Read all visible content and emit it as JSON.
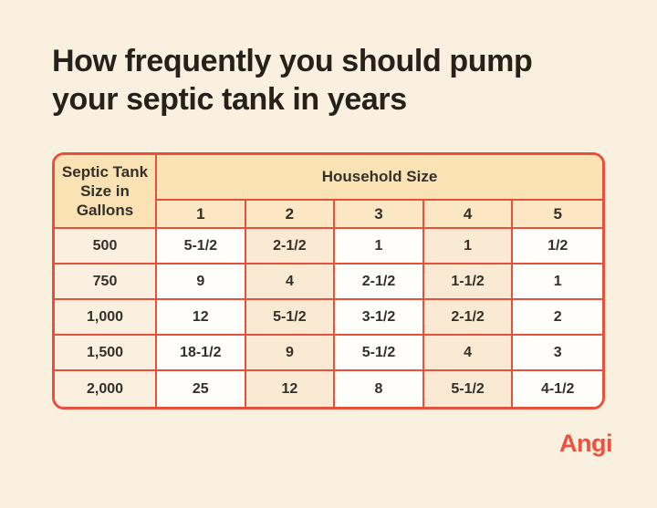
{
  "page": {
    "background_color": "#faf0df",
    "accent_red": "#e9503c",
    "header_peach": "#fae2b5",
    "subheader_peach": "#fbe7c3",
    "row_label_peach": "#fbefe0",
    "alt_column_peach": "#fae9d3",
    "title_color": "#26221b"
  },
  "header": {
    "title_line1": "How frequently you should pump",
    "title_line2": "your septic tank in years"
  },
  "footer": {
    "brand": "Angi",
    "brand_color": "#f0503c"
  },
  "chart_data": {
    "type": "table",
    "title": "How frequently you should pump your septic tank in years",
    "corner_header": "Septic Tank Size in Gallons",
    "corner_header_lines": [
      "Septic Tank",
      "Size in",
      "Gallons"
    ],
    "column_group_label": "Household Size",
    "household_sizes": [
      "1",
      "2",
      "3",
      "4",
      "5"
    ],
    "unit": "years",
    "rows": [
      {
        "tank_size_gallons": "500",
        "years_by_household_size": [
          "5-1/2",
          "2-1/2",
          "1",
          "1",
          "1/2"
        ]
      },
      {
        "tank_size_gallons": "750",
        "years_by_household_size": [
          "9",
          "4",
          "2-1/2",
          "1-1/2",
          "1"
        ]
      },
      {
        "tank_size_gallons": "1,000",
        "years_by_household_size": [
          "12",
          "5-1/2",
          "3-1/2",
          "2-1/2",
          "2"
        ]
      },
      {
        "tank_size_gallons": "1,500",
        "years_by_household_size": [
          "18-1/2",
          "9",
          "5-1/2",
          "4",
          "3"
        ]
      },
      {
        "tank_size_gallons": "2,000",
        "years_by_household_size": [
          "25",
          "12",
          "8",
          "5-1/2",
          "4-1/2"
        ]
      }
    ]
  }
}
